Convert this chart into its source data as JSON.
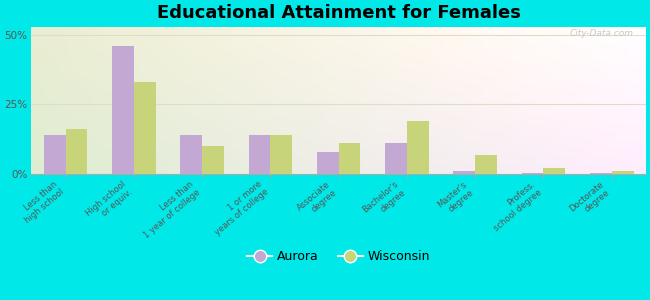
{
  "title": "Educational Attainment for Females",
  "categories": [
    "Less than\nhigh school",
    "High school\nor equiv.",
    "Less than\n1 year of college",
    "1 or more\nyears of college",
    "Associate\ndegree",
    "Bachelor's\ndegree",
    "Master's\ndegree",
    "Profess.\nschool degree",
    "Doctorate\ndegree"
  ],
  "aurora_values": [
    14.0,
    46.0,
    14.0,
    14.0,
    8.0,
    11.0,
    1.0,
    0.5,
    0.3
  ],
  "wisconsin_values": [
    16.0,
    33.0,
    10.0,
    14.0,
    11.0,
    19.0,
    7.0,
    2.0,
    1.0
  ],
  "aurora_color": "#c4a8d4",
  "wisconsin_color": "#c8d47a",
  "background_color": "#00e8e8",
  "yticks": [
    0,
    25,
    50
  ],
  "ylim": [
    0,
    53
  ],
  "bar_width": 0.32,
  "title_fontsize": 13,
  "tick_fontsize": 6.0,
  "legend_fontsize": 9,
  "watermark": "City-Data.com"
}
